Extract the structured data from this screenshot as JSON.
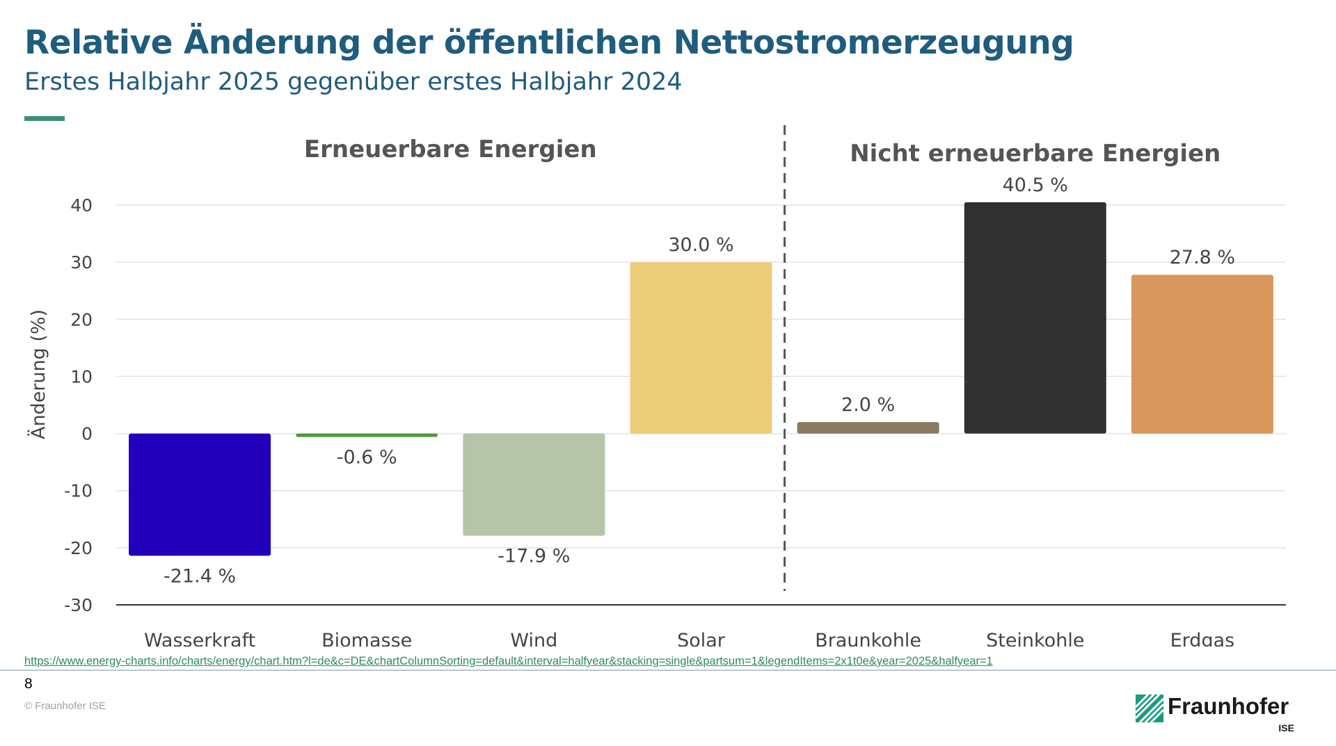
{
  "header": {
    "title": "Relative Änderung der öffentlichen Nettostromerzeugung",
    "subtitle": "Erstes Halbjahr 2025 gegenüber erstes Halbjahr 2024"
  },
  "chart_data": {
    "type": "bar",
    "title": "",
    "xlabel": "",
    "ylabel": "Änderung (%)",
    "ylim": [
      -30,
      45
    ],
    "yticks": [
      40,
      30,
      20,
      10,
      0,
      -10,
      -20,
      -30
    ],
    "grid": true,
    "groups": [
      {
        "label": "Erneuerbare Energien",
        "categories": [
          "Wasserkraft",
          "Biomasse",
          "Wind",
          "Solar"
        ]
      },
      {
        "label": "Nicht erneuerbare Energien",
        "categories": [
          "Braunkohle",
          "Steinkohle",
          "Erdgas"
        ]
      }
    ],
    "categories": [
      "Wasserkraft",
      "Biomasse",
      "Wind",
      "Solar",
      "Braunkohle",
      "Steinkohle",
      "Erdgas"
    ],
    "values": [
      -21.4,
      -0.6,
      -17.9,
      30.0,
      2.0,
      40.5,
      27.8
    ],
    "data_labels": [
      "-21.4 %",
      "-0.6 %",
      "-17.9 %",
      "30.0 %",
      "2.0 %",
      "40.5 %",
      "27.8 %"
    ],
    "colors": [
      "#2200bb",
      "#4e9a3a",
      "#b6c4a8",
      "#eccd7a",
      "#8a7a62",
      "#313131",
      "#d8985d"
    ],
    "separator_after": "Solar"
  },
  "footer": {
    "source_url": "https://www.energy-charts.info/charts/energy/chart.htm?l=de&c=DE&chartColumnSorting=default&interval=halfyear&stacking=single&partsum=1&legendItems=2x1t0e&year=2025&halfyear=1",
    "page_number": "8",
    "copyright": "© Fraunhofer ISE"
  },
  "logo": {
    "wordmark": "Fraunhofer",
    "sub": "ISE",
    "icon": "fraunhofer-stripes-logo"
  }
}
